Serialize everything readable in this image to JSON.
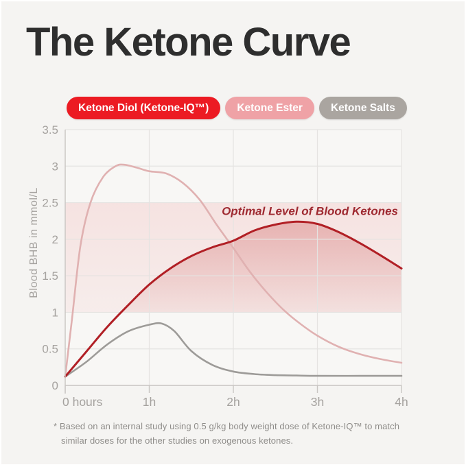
{
  "page": {
    "background": "#f5f4f2",
    "title": "The Ketone Curve",
    "title_color": "#2e2e2e"
  },
  "legend": {
    "items": [
      {
        "key": "ketone-diol",
        "label": "Ketone Diol (Ketone-IQ™)",
        "bg": "#ec1b23",
        "fg": "#ffffff"
      },
      {
        "key": "ketone-ester",
        "label": "Ketone Ester",
        "bg": "#efa2a6",
        "fg": "#ffffff"
      },
      {
        "key": "ketone-salts",
        "label": "Ketone Salts",
        "bg": "#aaa5a0",
        "fg": "#ffffff"
      }
    ]
  },
  "chart_data": {
    "type": "line",
    "title": "The Ketone Curve",
    "xlabel": "",
    "ylabel": "Blood BHB in mmol/L",
    "xlim": [
      0,
      4
    ],
    "ylim": [
      0,
      3.5
    ],
    "grid": true,
    "x_ticks": [
      {
        "value": 0,
        "label": "0 hours"
      },
      {
        "value": 1,
        "label": "1h"
      },
      {
        "value": 2,
        "label": "2h"
      },
      {
        "value": 3,
        "label": "3h"
      },
      {
        "value": 4,
        "label": "4h"
      }
    ],
    "y_ticks": [
      0,
      0.5,
      1,
      1.5,
      2,
      2.5,
      3,
      3.5
    ],
    "colors": {
      "plot_bg": "#f8f7f5",
      "grid": "#e5e3e1",
      "axis": "#c9c6c3",
      "tick_text": "#a5a29f",
      "band": "#eea8a8",
      "red_fill": "#c53f3f"
    },
    "optimal_band": {
      "min": 1.0,
      "max": 2.5,
      "label": "Optimal Level of Blood Ketones",
      "label_color": "#9f2a31"
    },
    "series": [
      {
        "key": "ketone-diol",
        "name": "Ketone Diol (Ketone-IQ™)",
        "color": "#b11f25",
        "stroke_width": 3,
        "area": true,
        "points": [
          [
            0,
            0.12
          ],
          [
            0.25,
            0.46
          ],
          [
            0.5,
            0.8
          ],
          [
            0.75,
            1.1
          ],
          [
            1,
            1.38
          ],
          [
            1.25,
            1.6
          ],
          [
            1.5,
            1.77
          ],
          [
            1.75,
            1.89
          ],
          [
            2,
            1.98
          ],
          [
            2.25,
            2.12
          ],
          [
            2.5,
            2.2
          ],
          [
            2.75,
            2.24
          ],
          [
            3,
            2.21
          ],
          [
            3.25,
            2.1
          ],
          [
            3.5,
            1.95
          ],
          [
            3.75,
            1.78
          ],
          [
            4,
            1.6
          ]
        ]
      },
      {
        "key": "ketone-ester",
        "name": "Ketone Ester",
        "color": "#e0b1b1",
        "stroke_width": 2.6,
        "area": false,
        "points": [
          [
            0,
            0.12
          ],
          [
            0.08,
            0.9
          ],
          [
            0.18,
            1.9
          ],
          [
            0.3,
            2.5
          ],
          [
            0.45,
            2.85
          ],
          [
            0.6,
            3.0
          ],
          [
            0.7,
            3.02
          ],
          [
            0.85,
            2.98
          ],
          [
            1,
            2.93
          ],
          [
            1.2,
            2.9
          ],
          [
            1.4,
            2.77
          ],
          [
            1.6,
            2.54
          ],
          [
            1.8,
            2.2
          ],
          [
            2,
            1.88
          ],
          [
            2.2,
            1.55
          ],
          [
            2.4,
            1.27
          ],
          [
            2.6,
            1.03
          ],
          [
            2.8,
            0.84
          ],
          [
            3,
            0.68
          ],
          [
            3.25,
            0.53
          ],
          [
            3.5,
            0.43
          ],
          [
            3.75,
            0.36
          ],
          [
            4,
            0.31
          ]
        ]
      },
      {
        "key": "ketone-salts",
        "name": "Ketone Salts",
        "color": "#9d9b98",
        "stroke_width": 2.6,
        "area": false,
        "points": [
          [
            0,
            0.12
          ],
          [
            0.25,
            0.32
          ],
          [
            0.5,
            0.56
          ],
          [
            0.75,
            0.74
          ],
          [
            1,
            0.83
          ],
          [
            1.15,
            0.845
          ],
          [
            1.3,
            0.74
          ],
          [
            1.5,
            0.47
          ],
          [
            1.75,
            0.28
          ],
          [
            2,
            0.19
          ],
          [
            2.25,
            0.155
          ],
          [
            2.5,
            0.14
          ],
          [
            2.75,
            0.135
          ],
          [
            3,
            0.13
          ],
          [
            3.5,
            0.13
          ],
          [
            4,
            0.13
          ]
        ]
      }
    ]
  },
  "footnote": {
    "text": "* Based on an internal study using 0.5 g/kg body weight dose of Ketone-IQ™ to match\nsimilar doses for the other studies on exogenous ketones."
  }
}
